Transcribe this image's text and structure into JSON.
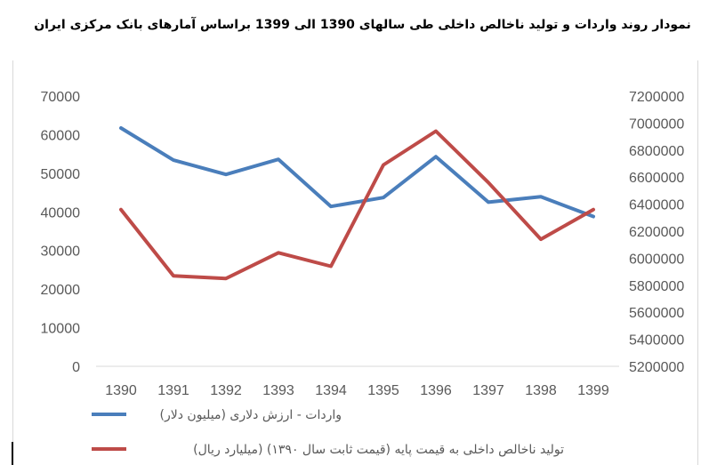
{
  "chart_data": {
    "type": "line",
    "title": "نمودار روند واردات و تولید ناخالص داخلی طی سالهای 1390 الی 1399 براساس آمارهای بانک مرکزی ایران",
    "categories": [
      "1390",
      "1391",
      "1392",
      "1393",
      "1394",
      "1395",
      "1396",
      "1397",
      "1398",
      "1399"
    ],
    "y_left": {
      "ylim": [
        0,
        70000
      ],
      "ticks": [
        "0",
        "10000",
        "20000",
        "30000",
        "40000",
        "50000",
        "60000",
        "70000"
      ]
    },
    "y_right": {
      "ylim": [
        5200000,
        7200000
      ],
      "ticks": [
        "5200000",
        "5400000",
        "5600000",
        "5800000",
        "6000000",
        "6200000",
        "6400000",
        "6600000",
        "6800000",
        "7000000",
        "7200000"
      ]
    },
    "series": [
      {
        "name": "واردات - ارزش دلاری (میلیون دلار)",
        "axis": "left",
        "color": "#4a7ebb",
        "values": [
          61700,
          53400,
          49700,
          53600,
          41400,
          43700,
          54300,
          42500,
          43900,
          38800
        ]
      },
      {
        "name": "تولید ناخالص داخلی به قیمت پایه (قیمت ثابت سال ۱۳۹۰) (میلیارد ریال)",
        "axis": "right",
        "color": "#be4b48",
        "values": [
          6360000,
          5870000,
          5850000,
          6040000,
          5940000,
          6690000,
          6940000,
          6560000,
          6140000,
          6360000
        ]
      }
    ],
    "grid": false,
    "legend": "bottom"
  }
}
